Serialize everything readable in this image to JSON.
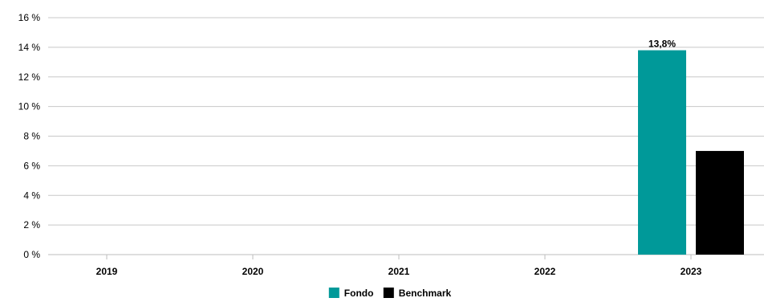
{
  "chart_data": {
    "type": "bar",
    "categories": [
      "2019",
      "2020",
      "2021",
      "2022",
      "2023"
    ],
    "series": [
      {
        "name": "Fondo",
        "color": "#009999",
        "values": [
          null,
          null,
          null,
          null,
          13.8
        ]
      },
      {
        "name": "Benchmark",
        "color": "#000000",
        "values": [
          null,
          null,
          null,
          null,
          7.0
        ]
      }
    ],
    "data_labels": [
      {
        "series": "Fondo",
        "category": "2023",
        "text": "13,8%"
      }
    ],
    "yticks": [
      "0 %",
      "2 %",
      "4 %",
      "6 %",
      "8 %",
      "10 %",
      "12 %",
      "14 %",
      "16 %"
    ],
    "ylim": [
      0,
      16
    ],
    "grid": true,
    "legend_position": "bottom-center",
    "title": "",
    "xlabel": "",
    "ylabel": ""
  }
}
